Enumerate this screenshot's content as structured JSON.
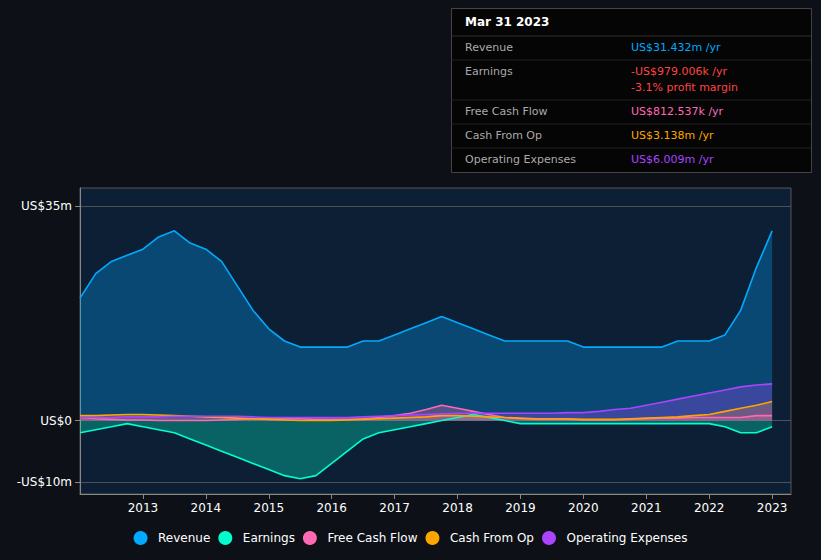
{
  "chart_data": {
    "type": "area",
    "title": "Mar 31 2023",
    "x": [
      2012,
      2012.25,
      2012.5,
      2012.75,
      2013,
      2013.25,
      2013.5,
      2013.75,
      2014,
      2014.25,
      2014.5,
      2014.75,
      2015,
      2015.25,
      2015.5,
      2015.75,
      2016,
      2016.25,
      2016.5,
      2016.75,
      2017,
      2017.25,
      2017.5,
      2017.75,
      2018,
      2018.25,
      2018.5,
      2018.75,
      2019,
      2019.25,
      2019.5,
      2019.75,
      2020,
      2020.25,
      2020.5,
      2020.75,
      2021,
      2021.25,
      2021.5,
      2021.75,
      2022,
      2022.25,
      2022.5,
      2022.75,
      2023
    ],
    "series": [
      {
        "name": "Revenue",
        "color": "#00aaff",
        "values": [
          20,
          24,
          26,
          27,
          28,
          30,
          31,
          29,
          28,
          26,
          22,
          18,
          15,
          13,
          12,
          12,
          12,
          12,
          13,
          13,
          14,
          15,
          16,
          17,
          16,
          15,
          14,
          13,
          13,
          13,
          13,
          13,
          12,
          12,
          12,
          12,
          12,
          12,
          13,
          13,
          13,
          14,
          18,
          25,
          31
        ]
      },
      {
        "name": "Earnings",
        "color": "#00ffcc",
        "values": [
          -2,
          -1.5,
          -1,
          -0.5,
          -1,
          -1.5,
          -2,
          -3,
          -4,
          -5,
          -6,
          -7,
          -8,
          -9,
          -9.5,
          -9,
          -7,
          -5,
          -3,
          -2,
          -1.5,
          -1,
          -0.5,
          0,
          0.5,
          1,
          0.5,
          0,
          -0.5,
          -0.5,
          -0.5,
          -0.5,
          -0.5,
          -0.5,
          -0.5,
          -0.5,
          -0.5,
          -0.5,
          -0.5,
          -0.5,
          -0.5,
          -1,
          -2,
          -2,
          -1
        ]
      },
      {
        "name": "Free Cash Flow",
        "color": "#ff69b4",
        "values": [
          0.5,
          0.3,
          0.2,
          0.1,
          0.1,
          0.0,
          0.0,
          0.0,
          0.0,
          0.1,
          0.2,
          0.3,
          0.3,
          0.3,
          0.3,
          0.2,
          0.2,
          0.2,
          0.3,
          0.5,
          0.8,
          1.2,
          1.8,
          2.5,
          2.0,
          1.5,
          1.0,
          0.5,
          0.3,
          0.2,
          0.2,
          0.2,
          0.1,
          0.1,
          0.1,
          0.2,
          0.3,
          0.4,
          0.4,
          0.5,
          0.5,
          0.5,
          0.5,
          0.8,
          0.8
        ]
      },
      {
        "name": "Cash From Op",
        "color": "#ffa500",
        "values": [
          0.8,
          0.8,
          0.9,
          1.0,
          1.0,
          0.9,
          0.8,
          0.7,
          0.6,
          0.5,
          0.4,
          0.3,
          0.2,
          0.1,
          0.0,
          0.0,
          0.0,
          0.1,
          0.2,
          0.3,
          0.4,
          0.5,
          0.6,
          0.8,
          0.8,
          0.7,
          0.6,
          0.5,
          0.4,
          0.3,
          0.3,
          0.3,
          0.2,
          0.2,
          0.2,
          0.3,
          0.4,
          0.5,
          0.6,
          0.8,
          1.0,
          1.5,
          2.0,
          2.5,
          3.1
        ]
      },
      {
        "name": "Operating Expenses",
        "color": "#aa44ff",
        "values": [
          0.5,
          0.5,
          0.5,
          0.6,
          0.6,
          0.6,
          0.7,
          0.7,
          0.7,
          0.7,
          0.7,
          0.6,
          0.5,
          0.5,
          0.5,
          0.5,
          0.5,
          0.5,
          0.6,
          0.7,
          0.8,
          0.9,
          1.0,
          1.1,
          1.2,
          1.2,
          1.2,
          1.2,
          1.2,
          1.2,
          1.2,
          1.3,
          1.3,
          1.5,
          1.8,
          2.0,
          2.5,
          3.0,
          3.5,
          4.0,
          4.5,
          5.0,
          5.5,
          5.8,
          6.0
        ]
      }
    ],
    "xlim": [
      2012,
      2023.3
    ],
    "xticks": [
      2013,
      2014,
      2015,
      2016,
      2017,
      2018,
      2019,
      2020,
      2021,
      2022,
      2023
    ],
    "ylim": [
      -12,
      38
    ],
    "yticks": [
      {
        "value": -10,
        "label": "-US$10m"
      },
      {
        "value": 0,
        "label": "US$0"
      },
      {
        "value": 35,
        "label": "US$35m"
      }
    ],
    "grid": true,
    "legend": "bottom",
    "annotations": [
      {
        "label": "Revenue",
        "text": "US$31.432m /yr",
        "color": "#00aaff"
      },
      {
        "label": "Earnings",
        "text": "-US$979.006k /yr",
        "color": "#ff4444",
        "note": "-3.1% profit margin",
        "note_color": "#ff4444"
      },
      {
        "label": "Free Cash Flow",
        "text": "US$812.537k /yr",
        "color": "#ff69b4"
      },
      {
        "label": "Cash From Op",
        "text": "US$3.138m /yr",
        "color": "#ffa500"
      },
      {
        "label": "Operating Expenses",
        "text": "US$6.009m /yr",
        "color": "#aa44ff"
      }
    ]
  }
}
